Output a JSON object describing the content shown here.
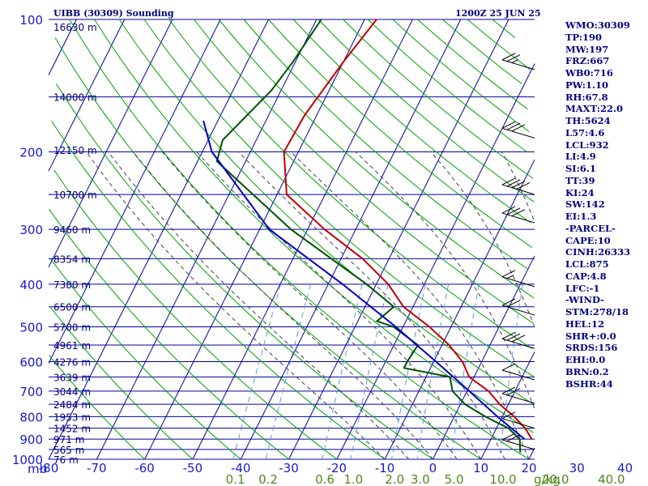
{
  "header": {
    "title": "UIBB (30309) Sounding",
    "time": "1200Z 25 JUN 25"
  },
  "axes": {
    "pressure_unit": "mb",
    "pressure_ticks": [
      "100",
      "200",
      "300",
      "400",
      "500",
      "600",
      "700",
      "800",
      "900",
      "1000"
    ],
    "temp_ticks": [
      "-80",
      "-70",
      "-60",
      "-50",
      "-40",
      "-30",
      "-20",
      "-10",
      "0",
      "10",
      "20",
      "30",
      "40"
    ],
    "mixing_unit": "g/kg",
    "mixing_ticks": [
      "0.1",
      "0.2",
      "0.6",
      "1.0",
      "2.0",
      "3.0",
      "5.0",
      "10.0",
      "20.0",
      "40.0"
    ],
    "height_labels": [
      "16630 m",
      "14000 m",
      "12150 m",
      "10700 m",
      "9460 m",
      "8354 m",
      "7380 m",
      "6500 m",
      "5700 m",
      "4961 m",
      "4276 m",
      "3639 m",
      "3044 m",
      "2484 m",
      "1953 m",
      "1452 m",
      "971 m",
      "565 m",
      "76 m"
    ]
  },
  "indices": [
    "WMO:30309",
    "TP:190",
    "MW:197",
    "FRZ:667",
    "WB0:716",
    "PW:1.10",
    "RH:67.8",
    "MAXT:22.0",
    "TH:5624",
    "L57:4.6",
    "LCL:932",
    "LI:4.9",
    "SI:6.1",
    "TT:39",
    "KI:24",
    "SW:142",
    "EI:1.3",
    "-PARCEL-",
    "CAPE:10",
    "CINH:26333",
    "LCL:875",
    "CAP:4.8",
    "LFC:-1",
    "-WIND-",
    "STM:278/18",
    "HEL:12",
    "SHR+:0.0",
    "SRDS:156",
    "EHI:0.0",
    "BRN:0.2",
    "BSHR:44"
  ],
  "colors": {
    "isobar": "#0000a0",
    "isotherm": "#0000a0",
    "dry_adiabat": "#00a000",
    "moist_adiabat": "#404040",
    "mixing_ratio": "#5a9cd6",
    "temperature": "#c00000",
    "dewpoint": "#005000",
    "parcel": "#0000c0",
    "wind": "#000000"
  },
  "chart_data": {
    "type": "skew-t",
    "ylabel": "mb",
    "xlabel": "",
    "pressure_levels": [
      100,
      200,
      300,
      400,
      500,
      600,
      700,
      800,
      900,
      1000
    ],
    "temp_ticks": [
      -80,
      -70,
      -60,
      -50,
      -40,
      -30,
      -20,
      -10,
      0,
      10,
      20,
      30,
      40
    ],
    "mixing_ratio_gkg": [
      0.1,
      0.2,
      0.6,
      1.0,
      2.0,
      3.0,
      5.0,
      10.0,
      20.0,
      40.0
    ],
    "height_levels": [
      {
        "p": 104,
        "h": "16630 m"
      },
      {
        "p": 150,
        "h": "14000 m"
      },
      {
        "p": 198,
        "h": "12150 m"
      },
      {
        "p": 250,
        "h": "10700 m"
      },
      {
        "p": 300,
        "h": "9460 m"
      },
      {
        "p": 350,
        "h": "8354 m"
      },
      {
        "p": 400,
        "h": "7380 m"
      },
      {
        "p": 450,
        "h": "6500 m"
      },
      {
        "p": 500,
        "h": "5700 m"
      },
      {
        "p": 550,
        "h": "4961 m"
      },
      {
        "p": 600,
        "h": "4276 m"
      },
      {
        "p": 650,
        "h": "3639 m"
      },
      {
        "p": 700,
        "h": "3044 m"
      },
      {
        "p": 750,
        "h": "2484 m"
      },
      {
        "p": 800,
        "h": "1953 m"
      },
      {
        "p": 850,
        "h": "1452 m"
      },
      {
        "p": 900,
        "h": "971 m"
      },
      {
        "p": 950,
        "h": "565 m"
      },
      {
        "p": 1000,
        "h": "76 m"
      }
    ],
    "series": [
      {
        "name": "Temperature",
        "values": [
          {
            "p": 100,
            "t": -57.5
          },
          {
            "p": 125,
            "t": -60
          },
          {
            "p": 165,
            "t": -62.5
          },
          {
            "p": 200,
            "t": -63
          },
          {
            "p": 250,
            "t": -58
          },
          {
            "p": 300,
            "t": -46.5
          },
          {
            "p": 350,
            "t": -35.5
          },
          {
            "p": 400,
            "t": -27.5
          },
          {
            "p": 450,
            "t": -22
          },
          {
            "p": 500,
            "t": -14.5
          },
          {
            "p": 550,
            "t": -8.5
          },
          {
            "p": 600,
            "t": -4
          },
          {
            "p": 650,
            "t": -1
          },
          {
            "p": 700,
            "t": 4.5
          },
          {
            "p": 750,
            "t": 8.2
          },
          {
            "p": 800,
            "t": 12.5
          },
          {
            "p": 850,
            "t": 16
          },
          {
            "p": 900,
            "t": 18.5
          },
          {
            "p": 950,
            "t": 20.5
          },
          {
            "p": 966,
            "t": 21.5
          }
        ]
      },
      {
        "name": "Dewpoint",
        "values": [
          {
            "p": 100,
            "t": -69
          },
          {
            "p": 125,
            "t": -70.5
          },
          {
            "p": 145,
            "t": -72
          },
          {
            "p": 188,
            "t": -77
          },
          {
            "p": 210,
            "t": -76
          },
          {
            "p": 250,
            "t": -65
          },
          {
            "p": 300,
            "t": -53.5
          },
          {
            "p": 350,
            "t": -42
          },
          {
            "p": 400,
            "t": -32
          },
          {
            "p": 450,
            "t": -24
          },
          {
            "p": 485,
            "t": -26
          },
          {
            "p": 500,
            "t": -22
          },
          {
            "p": 550,
            "t": -15
          },
          {
            "p": 600,
            "t": -15.5
          },
          {
            "p": 620,
            "t": -15.5
          },
          {
            "p": 650,
            "t": -5
          },
          {
            "p": 700,
            "t": -3
          },
          {
            "p": 750,
            "t": 1
          },
          {
            "p": 800,
            "t": 6.5
          },
          {
            "p": 850,
            "t": 12.5
          },
          {
            "p": 900,
            "t": 16
          },
          {
            "p": 966,
            "t": 17.5
          }
        ]
      },
      {
        "name": "Parcel",
        "values": [
          {
            "p": 170,
            "t": -83
          },
          {
            "p": 200,
            "t": -78
          },
          {
            "p": 300,
            "t": -58
          },
          {
            "p": 400,
            "t": -37
          },
          {
            "p": 500,
            "t": -21.5
          },
          {
            "p": 600,
            "t": -9.5
          },
          {
            "p": 700,
            "t": 0.5
          },
          {
            "p": 800,
            "t": 9
          },
          {
            "p": 900,
            "t": 17
          },
          {
            "p": 966,
            "t": 22
          }
        ]
      }
    ],
    "wind_barbs": [
      {
        "p": 130,
        "flags": 0,
        "barbs": 2.5
      },
      {
        "p": 186,
        "flags": 0,
        "barbs": 3
      },
      {
        "p": 250,
        "flags": 0,
        "barbs": 4
      },
      {
        "p": 290,
        "flags": 0,
        "barbs": 3
      },
      {
        "p": 405,
        "flags": 0,
        "barbs": 1.5
      },
      {
        "p": 470,
        "flags": 0,
        "barbs": 2
      },
      {
        "p": 560,
        "flags": 0,
        "barbs": 3
      },
      {
        "p": 660,
        "flags": 0,
        "barbs": 1
      },
      {
        "p": 746,
        "flags": 0,
        "barbs": 2
      },
      {
        "p": 850,
        "flags": 0,
        "barbs": 1
      },
      {
        "p": 950,
        "flags": 0,
        "barbs": 2
      }
    ]
  }
}
